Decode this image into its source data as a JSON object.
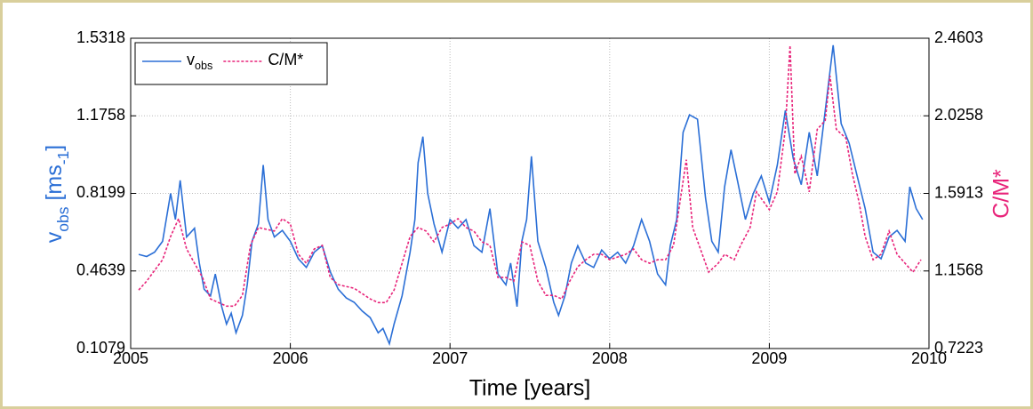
{
  "chart_data": {
    "type": "line",
    "xlabel": "Time [years]",
    "ylabel": [
      [
        "v",
        false
      ],
      [
        "obs",
        true
      ],
      [
        " [ms",
        false
      ],
      [
        "-1",
        true
      ],
      [
        "]",
        false
      ]
    ],
    "y2label": "C/M*",
    "xlim": [
      2005,
      2010
    ],
    "xticks": [
      2005,
      2006,
      2007,
      2008,
      2009,
      2010
    ],
    "ylim": [
      0.1079,
      1.5318
    ],
    "yticks": [
      0.1079,
      0.4639,
      0.8199,
      1.1758,
      1.5318
    ],
    "y2lim": [
      0.7223,
      2.4603
    ],
    "y2ticks": [
      0.7223,
      1.1568,
      1.5913,
      2.0258,
      2.4603
    ],
    "grid": true,
    "legend": "upper left",
    "series": [
      {
        "name": [
          [
            "v",
            false
          ],
          [
            "obs",
            true
          ]
        ],
        "color": "#2b6fd6",
        "dash": false,
        "x": [
          2005.05,
          2005.1,
          2005.15,
          2005.2,
          2005.25,
          2005.28,
          2005.31,
          2005.35,
          2005.4,
          2005.43,
          2005.46,
          2005.5,
          2005.53,
          2005.57,
          2005.6,
          2005.63,
          2005.66,
          2005.7,
          2005.73,
          2005.76,
          2005.8,
          2005.83,
          2005.86,
          2005.9,
          2005.95,
          2006.0,
          2006.05,
          2006.1,
          2006.15,
          2006.2,
          2006.25,
          2006.3,
          2006.35,
          2006.4,
          2006.45,
          2006.5,
          2006.55,
          2006.58,
          2006.62,
          2006.65,
          2006.7,
          2006.75,
          2006.78,
          2006.8,
          2006.83,
          2006.86,
          2006.9,
          2006.95,
          2007.0,
          2007.05,
          2007.1,
          2007.15,
          2007.2,
          2007.25,
          2007.3,
          2007.35,
          2007.38,
          2007.42,
          2007.45,
          2007.48,
          2007.51,
          2007.55,
          2007.6,
          2007.65,
          2007.68,
          2007.72,
          2007.76,
          2007.8,
          2007.85,
          2007.9,
          2007.95,
          2008.0,
          2008.05,
          2008.1,
          2008.15,
          2008.2,
          2008.25,
          2008.3,
          2008.35,
          2008.38,
          2008.42,
          2008.46,
          2008.5,
          2008.55,
          2008.6,
          2008.64,
          2008.68,
          2008.72,
          2008.76,
          2008.8,
          2008.85,
          2008.9,
          2008.95,
          2009.0,
          2009.05,
          2009.1,
          2009.15,
          2009.2,
          2009.25,
          2009.3,
          2009.35,
          2009.4,
          2009.45,
          2009.5,
          2009.55,
          2009.6,
          2009.65,
          2009.7,
          2009.75,
          2009.8,
          2009.85,
          2009.88,
          2009.92,
          2009.96
        ],
        "values": [
          0.54,
          0.53,
          0.55,
          0.6,
          0.82,
          0.7,
          0.88,
          0.62,
          0.66,
          0.5,
          0.38,
          0.35,
          0.45,
          0.3,
          0.22,
          0.27,
          0.18,
          0.26,
          0.4,
          0.6,
          0.68,
          0.95,
          0.7,
          0.62,
          0.65,
          0.6,
          0.52,
          0.48,
          0.55,
          0.58,
          0.46,
          0.38,
          0.34,
          0.32,
          0.28,
          0.25,
          0.18,
          0.2,
          0.13,
          0.22,
          0.35,
          0.55,
          0.7,
          0.96,
          1.08,
          0.82,
          0.68,
          0.55,
          0.7,
          0.66,
          0.7,
          0.58,
          0.55,
          0.75,
          0.45,
          0.4,
          0.5,
          0.3,
          0.6,
          0.7,
          0.99,
          0.6,
          0.48,
          0.32,
          0.26,
          0.35,
          0.5,
          0.58,
          0.5,
          0.48,
          0.56,
          0.52,
          0.55,
          0.5,
          0.58,
          0.7,
          0.6,
          0.45,
          0.4,
          0.58,
          0.7,
          1.1,
          1.18,
          1.16,
          0.8,
          0.6,
          0.55,
          0.85,
          1.02,
          0.88,
          0.7,
          0.82,
          0.9,
          0.78,
          0.95,
          1.2,
          0.98,
          0.86,
          1.1,
          0.9,
          1.2,
          1.5,
          1.14,
          1.05,
          0.9,
          0.75,
          0.55,
          0.52,
          0.62,
          0.65,
          0.6,
          0.85,
          0.75,
          0.7
        ]
      },
      {
        "name": [
          [
            "C/M*",
            false
          ]
        ],
        "color": "#e8247a",
        "dash": true,
        "axis": "y2",
        "x": [
          2005.05,
          2005.1,
          2005.15,
          2005.2,
          2005.25,
          2005.3,
          2005.35,
          2005.4,
          2005.45,
          2005.5,
          2005.55,
          2005.6,
          2005.65,
          2005.7,
          2005.75,
          2005.8,
          2005.9,
          2005.95,
          2006.0,
          2006.05,
          2006.1,
          2006.15,
          2006.2,
          2006.25,
          2006.3,
          2006.4,
          2006.5,
          2006.55,
          2006.6,
          2006.65,
          2006.7,
          2006.75,
          2006.8,
          2006.85,
          2006.9,
          2006.95,
          2007.0,
          2007.05,
          2007.1,
          2007.15,
          2007.2,
          2007.25,
          2007.3,
          2007.35,
          2007.4,
          2007.45,
          2007.5,
          2007.55,
          2007.6,
          2007.65,
          2007.7,
          2007.75,
          2007.8,
          2007.85,
          2007.9,
          2007.95,
          2008.0,
          2008.1,
          2008.15,
          2008.2,
          2008.25,
          2008.3,
          2008.35,
          2008.4,
          2008.45,
          2008.48,
          2008.52,
          2008.58,
          2008.62,
          2008.68,
          2008.72,
          2008.78,
          2008.82,
          2008.88,
          2008.92,
          2008.96,
          2009.0,
          2009.05,
          2009.1,
          2009.13,
          2009.16,
          2009.2,
          2009.25,
          2009.3,
          2009.35,
          2009.38,
          2009.42,
          2009.48,
          2009.52,
          2009.56,
          2009.6,
          2009.65,
          2009.7,
          2009.75,
          2009.8,
          2009.85,
          2009.9,
          2009.95
        ],
        "values": [
          1.05,
          1.1,
          1.16,
          1.22,
          1.35,
          1.45,
          1.28,
          1.2,
          1.12,
          1.0,
          0.98,
          0.96,
          0.96,
          1.02,
          1.3,
          1.4,
          1.38,
          1.45,
          1.42,
          1.25,
          1.2,
          1.28,
          1.3,
          1.12,
          1.08,
          1.06,
          1.0,
          0.98,
          0.98,
          1.05,
          1.2,
          1.35,
          1.4,
          1.38,
          1.32,
          1.4,
          1.42,
          1.45,
          1.4,
          1.38,
          1.32,
          1.3,
          1.12,
          1.12,
          1.1,
          1.32,
          1.3,
          1.1,
          1.02,
          1.02,
          1.0,
          1.1,
          1.18,
          1.22,
          1.25,
          1.25,
          1.22,
          1.25,
          1.28,
          1.22,
          1.2,
          1.22,
          1.22,
          1.3,
          1.6,
          1.78,
          1.4,
          1.25,
          1.15,
          1.2,
          1.25,
          1.22,
          1.3,
          1.4,
          1.6,
          1.55,
          1.5,
          1.6,
          1.95,
          2.42,
          1.7,
          1.8,
          1.6,
          1.95,
          2.0,
          2.25,
          1.95,
          1.9,
          1.7,
          1.55,
          1.35,
          1.22,
          1.25,
          1.38,
          1.25,
          1.2,
          1.15,
          1.22
        ]
      }
    ]
  }
}
